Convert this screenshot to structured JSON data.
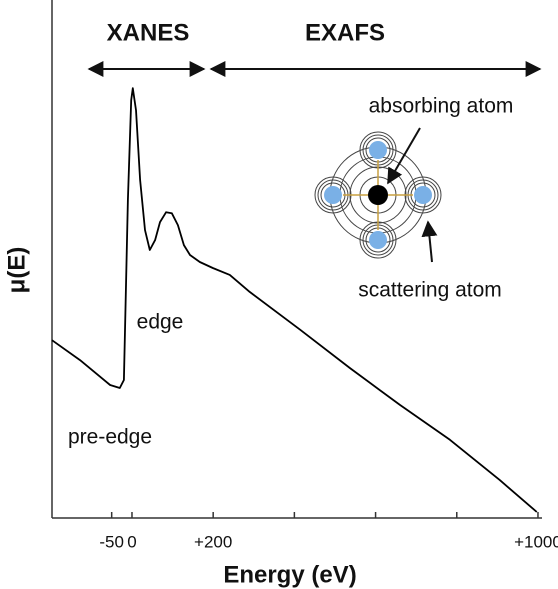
{
  "chart_data": {
    "type": "line",
    "ylabel": "μ(E)",
    "xlabel": "Energy (eV)",
    "regions": [
      "XANES",
      "EXAFS"
    ],
    "annotations": [
      "edge",
      "pre-edge",
      "absorbing atom",
      "scattering atom"
    ],
    "x": [
      -197,
      -128,
      -54,
      -30,
      -20,
      -10,
      -2,
      2,
      10,
      20,
      32,
      44,
      57,
      69,
      84,
      98,
      113,
      128,
      143,
      167,
      199,
      241,
      290,
      414,
      537,
      660,
      783,
      906,
      997
    ],
    "values": [
      0.357,
      0.317,
      0.267,
      0.261,
      0.277,
      0.639,
      0.839,
      0.863,
      0.819,
      0.679,
      0.578,
      0.538,
      0.558,
      0.594,
      0.614,
      0.612,
      0.588,
      0.548,
      0.528,
      0.514,
      0.502,
      0.488,
      0.454,
      0.378,
      0.301,
      0.227,
      0.157,
      0.076,
      0.012
    ],
    "color": "#000000",
    "xlim": [
      -197,
      1005
    ],
    "ylim": [
      0,
      1.04
    ],
    "xticks": [
      -50,
      0,
      {
        "value": 200,
        "label": "+200"
      },
      {
        "value": 1000,
        "label": "+1000"
      }
    ],
    "minor_xticks": [
      400,
      600,
      800
    ]
  }
}
